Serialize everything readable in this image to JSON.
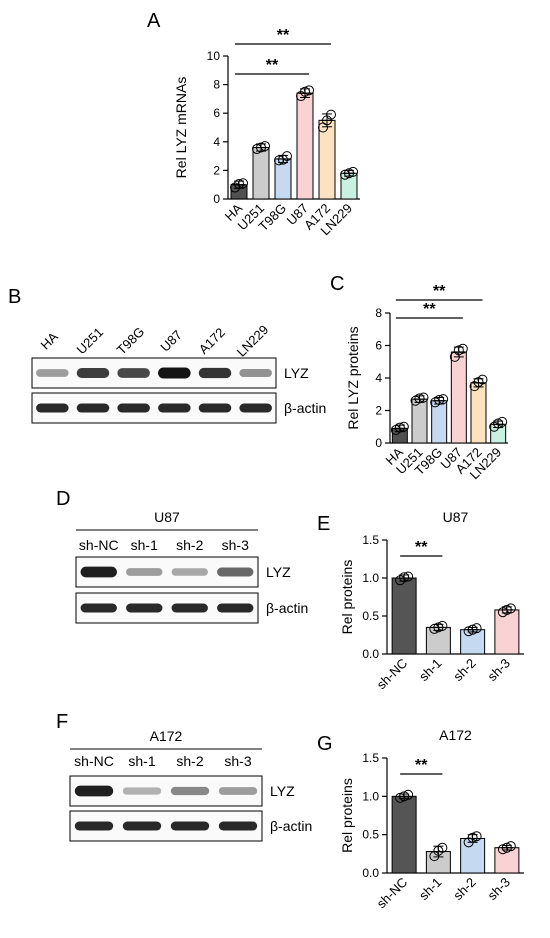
{
  "panels": {
    "A": "A",
    "B": "B",
    "C": "C",
    "D": "D",
    "E": "E",
    "F": "F",
    "G": "G"
  },
  "colors": {
    "HA": "#505050",
    "U251": "#cccccc",
    "T98G": "#c5d9f1",
    "U87": "#f9d3d3",
    "A172": "#fce2bf",
    "LN229": "#c9f0e0",
    "sh-NC": "#555555",
    "sh-1": "#cccccc",
    "sh-2": "#c5d9f1",
    "sh-3": "#f9d3d3"
  },
  "blotB": {
    "lanes": [
      "HA",
      "U251",
      "T98G",
      "U87",
      "A172",
      "LN229"
    ],
    "rows": [
      "LYZ",
      "β-actin"
    ],
    "lyz_intensity": [
      0.35,
      0.8,
      0.75,
      1.0,
      0.85,
      0.4
    ]
  },
  "blotD": {
    "title": "U87",
    "lanes": [
      "sh-NC",
      "sh-1",
      "sh-2",
      "sh-3"
    ],
    "rows": [
      "LYZ",
      "β-actin"
    ],
    "lyz_intensity": [
      0.95,
      0.35,
      0.3,
      0.6
    ]
  },
  "blotF": {
    "title": "A172",
    "lanes": [
      "sh-NC",
      "sh-1",
      "sh-2",
      "sh-3"
    ],
    "rows": [
      "LYZ",
      "β-actin"
    ],
    "lyz_intensity": [
      0.95,
      0.25,
      0.45,
      0.35
    ]
  },
  "chart_data": [
    {
      "panel": "A",
      "type": "bar",
      "ylabel": "Rel LYZ mRNAs",
      "categories": [
        "HA",
        "U251",
        "T98G",
        "U87",
        "A172",
        "LN229"
      ],
      "values": [
        1.0,
        3.6,
        2.8,
        7.4,
        5.5,
        1.8
      ],
      "errors": [
        0.25,
        0.25,
        0.25,
        0.3,
        0.45,
        0.2
      ],
      "points": [
        [
          0.8,
          1.1,
          1.05
        ],
        [
          3.5,
          3.7,
          3.6
        ],
        [
          2.7,
          3.0,
          2.75
        ],
        [
          7.2,
          7.6,
          7.5
        ],
        [
          5.0,
          5.9,
          5.5
        ],
        [
          1.7,
          1.9,
          1.8
        ]
      ],
      "ylim": [
        0,
        10
      ],
      "yticks": [
        0,
        2,
        4,
        6,
        8,
        10
      ],
      "significance": [
        {
          "from": "HA",
          "to": "U87",
          "label": "**"
        },
        {
          "from": "HA",
          "to": "A172",
          "label": "**"
        }
      ]
    },
    {
      "panel": "C",
      "type": "bar",
      "ylabel": "Rel LYZ proteins",
      "categories": [
        "HA",
        "U251",
        "T98G",
        "U87",
        "A172",
        "LN229"
      ],
      "values": [
        0.9,
        2.7,
        2.6,
        5.6,
        3.7,
        1.15
      ],
      "errors": [
        0.2,
        0.2,
        0.2,
        0.3,
        0.25,
        0.2
      ],
      "points": [
        [
          0.8,
          1.0,
          0.95
        ],
        [
          2.6,
          2.8,
          2.75
        ],
        [
          2.5,
          2.7,
          2.65
        ],
        [
          5.3,
          5.8,
          5.7
        ],
        [
          3.5,
          3.9,
          3.75
        ],
        [
          1.0,
          1.3,
          1.2
        ]
      ],
      "ylim": [
        0,
        8
      ],
      "yticks": [
        0,
        2,
        4,
        6,
        8
      ],
      "significance": [
        {
          "from": "HA",
          "to": "U87",
          "label": "**"
        },
        {
          "from": "HA",
          "to": "A172",
          "label": "**"
        }
      ]
    },
    {
      "panel": "E",
      "type": "bar",
      "title": "U87",
      "ylabel": "Rel  proteins",
      "categories": [
        "sh-NC",
        "sh-1",
        "sh-2",
        "sh-3"
      ],
      "values": [
        1.0,
        0.35,
        0.32,
        0.58
      ],
      "errors": [
        0.04,
        0.04,
        0.03,
        0.04
      ],
      "points": [
        [
          0.97,
          1.02,
          1.01
        ],
        [
          0.33,
          0.37,
          0.35
        ],
        [
          0.3,
          0.34,
          0.32
        ],
        [
          0.55,
          0.6,
          0.58
        ]
      ],
      "ylim": [
        0,
        1.5
      ],
      "yticks": [
        "0.0",
        "0.5",
        "1.0",
        "1.5"
      ],
      "significance": [
        {
          "from": "sh-NC",
          "to": "sh-1",
          "label": "**"
        }
      ]
    },
    {
      "panel": "G",
      "type": "bar",
      "title": "A172",
      "ylabel": "Rel  proteins",
      "categories": [
        "sh-NC",
        "sh-1",
        "sh-2",
        "sh-3"
      ],
      "values": [
        1.0,
        0.28,
        0.45,
        0.33
      ],
      "errors": [
        0.03,
        0.07,
        0.05,
        0.03
      ],
      "points": [
        [
          0.98,
          1.02,
          1.0
        ],
        [
          0.22,
          0.33,
          0.29
        ],
        [
          0.4,
          0.48,
          0.46
        ],
        [
          0.31,
          0.35,
          0.33
        ]
      ],
      "ylim": [
        0,
        1.5
      ],
      "yticks": [
        "0.0",
        "0.5",
        "1.0",
        "1.5"
      ],
      "significance": [
        {
          "from": "sh-NC",
          "to": "sh-1",
          "label": "**"
        }
      ]
    }
  ]
}
